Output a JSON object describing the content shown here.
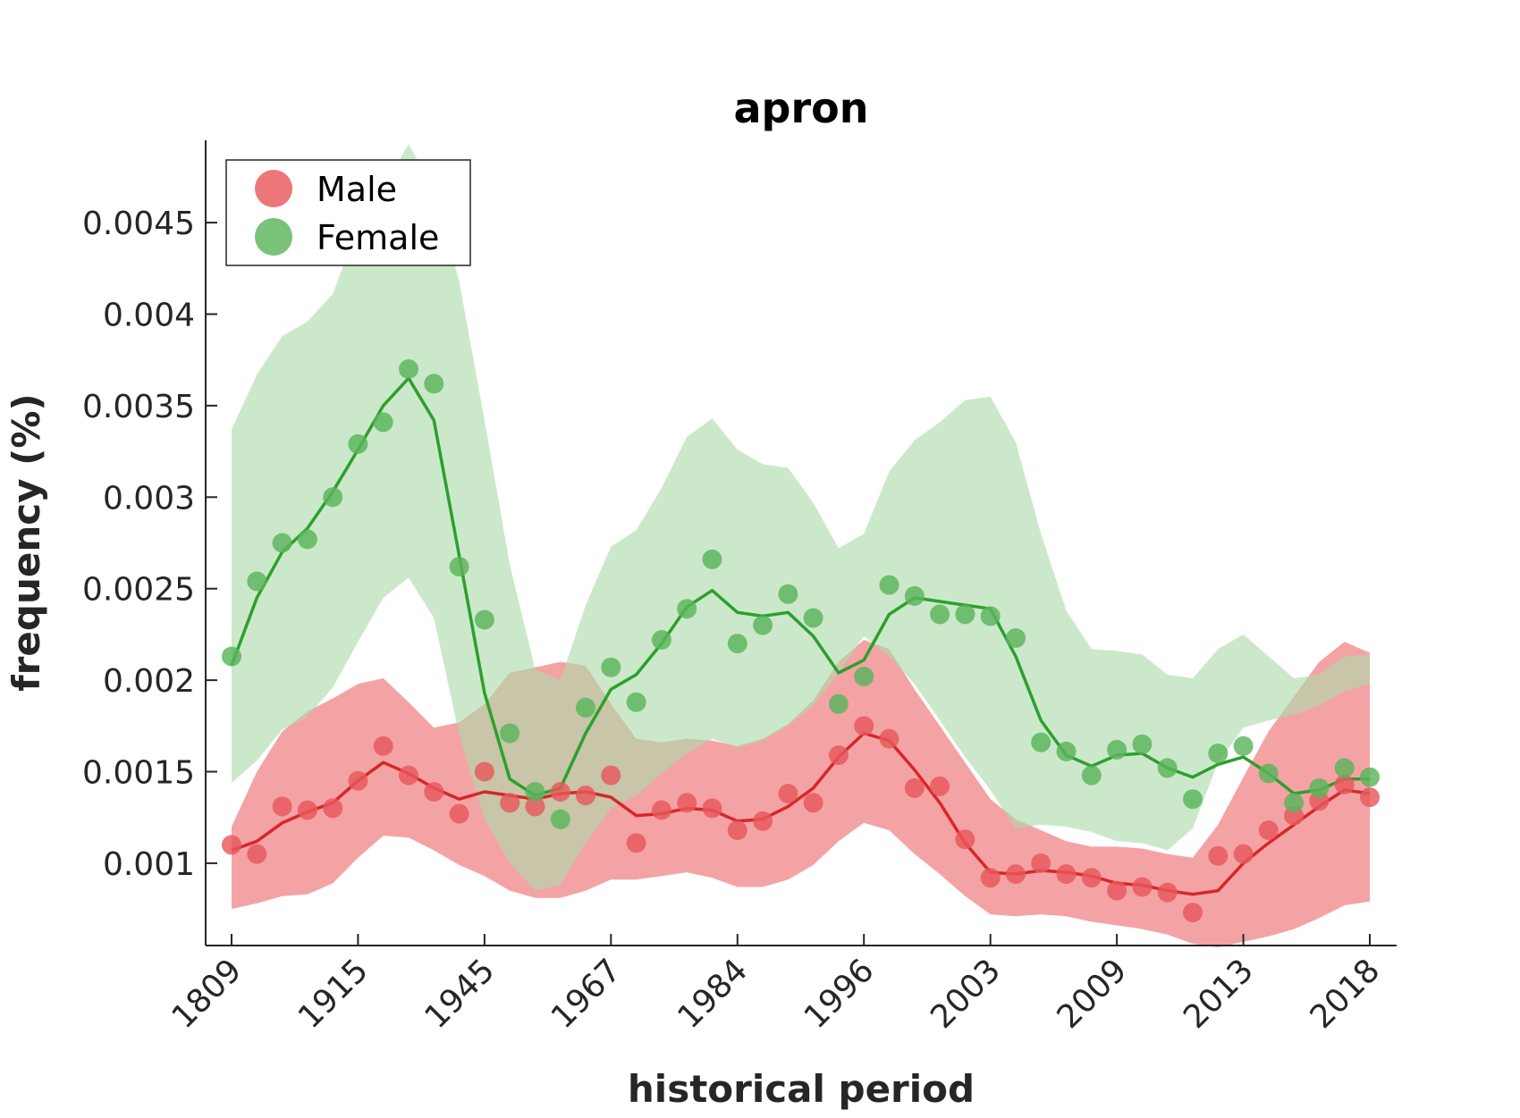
{
  "chart_data": {
    "type": "line",
    "title": "apron",
    "xlabel": "historical period",
    "ylabel": "frequency (%)",
    "x_tick_labels": [
      "1809",
      "1915",
      "1945",
      "1967",
      "1984",
      "1996",
      "2003",
      "2009",
      "2013",
      "2018"
    ],
    "y_ticks": [
      0.001,
      0.0015,
      0.002,
      0.0025,
      0.003,
      0.0035,
      0.004,
      0.0045
    ],
    "y_tick_labels": [
      "0.001",
      "0.0015",
      "0.002",
      "0.0025",
      "0.003",
      "0.0035",
      "0.004",
      "0.0045"
    ],
    "ylim": [
      0.00055,
      0.00495
    ],
    "x_count": 46,
    "legend_position": "top-left",
    "grid": false,
    "series": [
      {
        "name": "Male",
        "color": "#e8585c",
        "line_color": "#d62728",
        "band_color": "#f4a3a5",
        "points": [
          0.0011,
          0.00105,
          0.00131,
          0.00129,
          0.0013,
          0.00145,
          0.00164,
          0.00148,
          0.00139,
          0.00127,
          0.0015,
          0.00133,
          0.00131,
          0.00139,
          0.00137,
          0.00148,
          0.00111,
          0.00129,
          0.00133,
          0.0013,
          0.00118,
          0.00123,
          0.00138,
          0.00133,
          0.00159,
          0.00175,
          0.00168,
          0.00141,
          0.00142,
          0.00113,
          0.00092,
          0.00094,
          0.001,
          0.00094,
          0.00092,
          0.00085,
          0.00087,
          0.00084,
          0.00073,
          0.00104,
          0.00105,
          0.00118,
          0.00126,
          0.00134,
          0.00143,
          0.00136
        ],
        "line": [
          0.00107,
          0.00112,
          0.00122,
          0.00128,
          0.00133,
          0.00145,
          0.00155,
          0.00149,
          0.00141,
          0.00135,
          0.00139,
          0.00137,
          0.00135,
          0.00138,
          0.00139,
          0.00136,
          0.00126,
          0.00127,
          0.0013,
          0.00129,
          0.00123,
          0.00124,
          0.00131,
          0.00141,
          0.00158,
          0.00171,
          0.00167,
          0.00151,
          0.00133,
          0.00111,
          0.00095,
          0.00094,
          0.00096,
          0.00095,
          0.00093,
          0.00089,
          0.00088,
          0.00085,
          0.00083,
          0.00085,
          0.001,
          0.00111,
          0.00121,
          0.00131,
          0.0014,
          0.00138
        ],
        "upper": [
          0.0012,
          0.0015,
          0.00172,
          0.00183,
          0.0019,
          0.00198,
          0.00201,
          0.00188,
          0.00174,
          0.00177,
          0.00187,
          0.00204,
          0.00207,
          0.0021,
          0.00208,
          0.00187,
          0.00168,
          0.00166,
          0.00168,
          0.00167,
          0.00164,
          0.00168,
          0.00176,
          0.00189,
          0.0021,
          0.00222,
          0.00217,
          0.00195,
          0.00175,
          0.00155,
          0.00135,
          0.00124,
          0.00118,
          0.00112,
          0.00109,
          0.00109,
          0.00108,
          0.00105,
          0.00103,
          0.00121,
          0.00147,
          0.00172,
          0.00191,
          0.0021,
          0.00221,
          0.00215
        ],
        "lower": [
          0.00075,
          0.00078,
          0.00082,
          0.00083,
          0.00089,
          0.00103,
          0.00115,
          0.00114,
          0.00107,
          0.00099,
          0.00093,
          0.00085,
          0.00081,
          0.00081,
          0.00085,
          0.00091,
          0.00091,
          0.00093,
          0.00095,
          0.00092,
          0.00087,
          0.00087,
          0.00091,
          0.00099,
          0.00112,
          0.00122,
          0.00118,
          0.00105,
          0.00094,
          0.00082,
          0.00072,
          0.00071,
          0.00072,
          0.00071,
          0.00068,
          0.00066,
          0.00064,
          0.00061,
          0.00056,
          0.00054,
          0.00057,
          0.0006,
          0.00064,
          0.0007,
          0.00077,
          0.00079
        ]
      },
      {
        "name": "Female",
        "color": "#5ab55c",
        "line_color": "#2ca02c",
        "band_color": "#addaa9",
        "points": [
          0.00213,
          0.00254,
          0.00275,
          0.00277,
          0.003,
          0.00329,
          0.00341,
          0.0037,
          0.00362,
          0.00262,
          0.00233,
          0.00171,
          0.00139,
          0.00124,
          0.00185,
          0.00207,
          0.00188,
          0.00222,
          0.00239,
          0.00266,
          0.0022,
          0.0023,
          0.00247,
          0.00234,
          0.00187,
          0.00202,
          0.00252,
          0.00246,
          0.00236,
          0.00236,
          0.00235,
          0.00223,
          0.00166,
          0.00161,
          0.00148,
          0.00162,
          0.00165,
          0.00152,
          0.00135,
          0.0016,
          0.00164,
          0.00149,
          0.00133,
          0.00141,
          0.00152,
          0.00147
        ],
        "line": [
          0.00208,
          0.00245,
          0.0027,
          0.00283,
          0.00303,
          0.00326,
          0.0035,
          0.00365,
          0.00342,
          0.00268,
          0.00193,
          0.00146,
          0.00137,
          0.00141,
          0.00171,
          0.00195,
          0.00203,
          0.0022,
          0.0024,
          0.00249,
          0.00237,
          0.00235,
          0.00237,
          0.00224,
          0.00204,
          0.00211,
          0.00236,
          0.00245,
          0.00243,
          0.00241,
          0.00239,
          0.00213,
          0.00178,
          0.00159,
          0.00153,
          0.00159,
          0.0016,
          0.00152,
          0.00147,
          0.00154,
          0.00158,
          0.00149,
          0.00138,
          0.0014,
          0.00146,
          0.00146
        ],
        "upper": [
          0.00337,
          0.00367,
          0.00388,
          0.00396,
          0.00411,
          0.00448,
          0.00469,
          0.00493,
          0.00468,
          0.00418,
          0.00342,
          0.00263,
          0.00206,
          0.002,
          0.00241,
          0.00273,
          0.00282,
          0.00305,
          0.00333,
          0.00343,
          0.00326,
          0.00318,
          0.00316,
          0.00297,
          0.00272,
          0.0028,
          0.00314,
          0.00331,
          0.00341,
          0.00353,
          0.00355,
          0.0033,
          0.0028,
          0.00238,
          0.00217,
          0.00216,
          0.00214,
          0.00203,
          0.00201,
          0.00217,
          0.00225,
          0.00213,
          0.00201,
          0.00203,
          0.00213,
          0.00214
        ],
        "lower": [
          0.00144,
          0.00156,
          0.00173,
          0.0018,
          0.00196,
          0.00221,
          0.00245,
          0.00256,
          0.00234,
          0.0017,
          0.00124,
          0.001,
          0.00085,
          0.00088,
          0.00111,
          0.0013,
          0.00137,
          0.00149,
          0.0016,
          0.00168,
          0.00163,
          0.00167,
          0.00175,
          0.00186,
          0.00204,
          0.00224,
          0.00213,
          0.00198,
          0.00178,
          0.00158,
          0.0014,
          0.00119,
          0.00121,
          0.0012,
          0.00117,
          0.00112,
          0.00111,
          0.00107,
          0.00119,
          0.00155,
          0.00174,
          0.00178,
          0.00181,
          0.00186,
          0.00194,
          0.00198
        ]
      }
    ]
  }
}
